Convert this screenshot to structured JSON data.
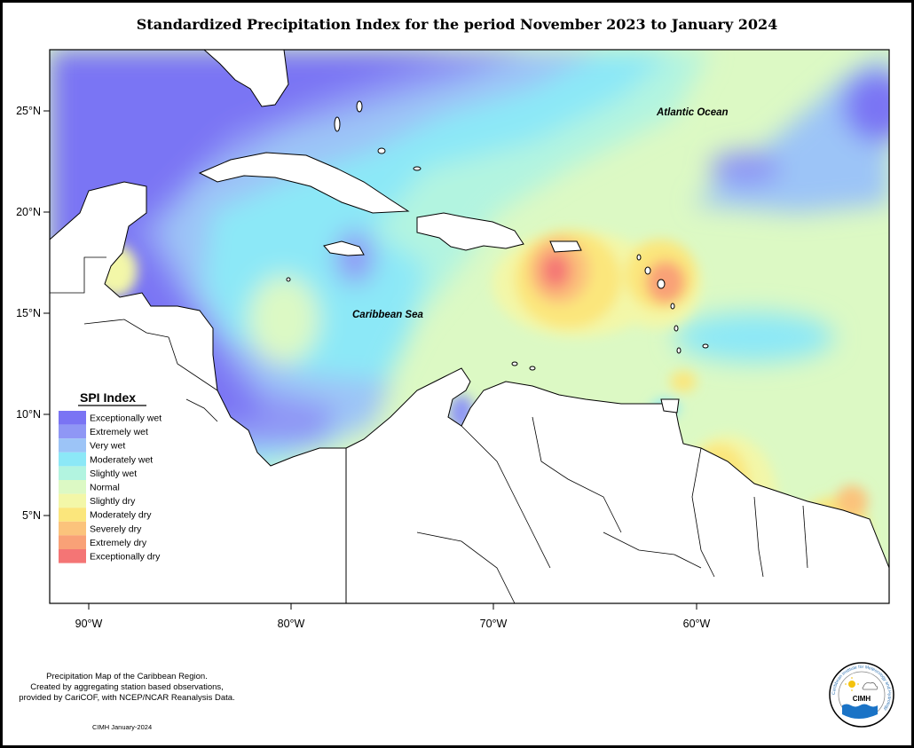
{
  "title": "Standardized Precipitation Index for the period November 2023 to January 2024",
  "labels": {
    "atlantic": "Atlantic Ocean",
    "caribbean": "Caribbean Sea"
  },
  "axes": {
    "lat_ticks": [
      "25°N",
      "20°N",
      "15°N",
      "10°N",
      "5°N"
    ],
    "lon_ticks": [
      "90°W",
      "80°W",
      "70°W",
      "60°W"
    ]
  },
  "legend": {
    "title": "SPI Index",
    "items": [
      {
        "label": "Exceptionally wet",
        "color": "#7a74f4"
      },
      {
        "label": "Extremely wet",
        "color": "#8f97f5"
      },
      {
        "label": "Very wet",
        "color": "#9cc4f7"
      },
      {
        "label": "Moderately wet",
        "color": "#8ce8f7"
      },
      {
        "label": "Slightly wet",
        "color": "#b2f4e0"
      },
      {
        "label": "Normal",
        "color": "#dcf9c4"
      },
      {
        "label": "Slightly dry",
        "color": "#f3f7a8"
      },
      {
        "label": "Moderately dry",
        "color": "#fbe67c"
      },
      {
        "label": "Severely dry",
        "color": "#fbc37c"
      },
      {
        "label": "Extremely dry",
        "color": "#f9a177"
      },
      {
        "label": "Exceptionally dry",
        "color": "#f47575"
      }
    ]
  },
  "credit": {
    "line1": "Precipitation Map of the Caribbean Region.",
    "line2": "Created by aggregating station based observations,",
    "line3": "provided by CariCOF, with NCEP/NCAR Reanalysis Data."
  },
  "stamp": "CIMH January-2024",
  "logo": {
    "text": "CIMH",
    "ring_text": "Caribbean Institute for Meteorology and Hydrology"
  }
}
